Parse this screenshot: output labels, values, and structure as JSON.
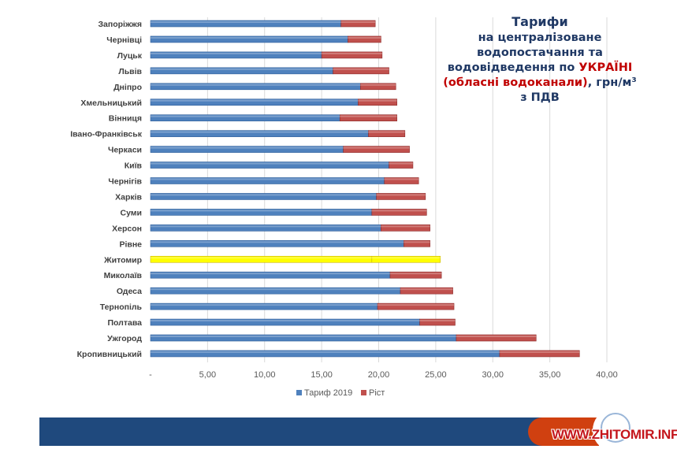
{
  "title": {
    "line1": "Тарифи",
    "line2": "на централізоване",
    "line3": "водопостачання та",
    "line4a": "водовідведення по ",
    "line4b": "УКРАЇНІ",
    "line5a": "(обласні водоканали)",
    "line5b": ", грн/м³",
    "line6": "з ПДВ"
  },
  "watermark": "WWW.ZHITOMIR.INFO",
  "colors": {
    "blue": "#4f81bd",
    "red": "#c0504d",
    "highlight": "#ffff00"
  },
  "chart_data": {
    "type": "bar",
    "orientation": "horizontal",
    "stacked": true,
    "categories": [
      "Запоріжжя",
      "Чернівці",
      "Луцьк",
      "Львів",
      "Дніпро",
      "Хмельницький",
      "Вінниця",
      "Івано-Франківськ",
      "Черкаси",
      "Київ",
      "Чернігів",
      "Харків",
      "Суми",
      "Херсон",
      "Рівне",
      "Житомир",
      "Миколаїв",
      "Одеса",
      "Тернопіль",
      "Полтава",
      "Ужгород",
      "Кропивницький"
    ],
    "series": [
      {
        "name": "Тариф 2019",
        "values": [
          16.7,
          17.3,
          15.0,
          16.0,
          18.4,
          18.2,
          16.6,
          19.1,
          16.9,
          20.9,
          20.5,
          19.8,
          19.4,
          20.2,
          22.2,
          19.4,
          21.0,
          21.9,
          19.9,
          23.6,
          26.8,
          30.6
        ]
      },
      {
        "name": "Ріст",
        "values": [
          3.0,
          2.9,
          5.3,
          4.9,
          3.1,
          3.4,
          5.0,
          3.2,
          5.8,
          2.1,
          3.0,
          4.3,
          4.8,
          4.3,
          2.3,
          6.0,
          4.5,
          4.6,
          6.7,
          3.1,
          7.0,
          7.0
        ]
      }
    ],
    "highlight": "Житомир",
    "xlim": [
      0,
      40
    ],
    "xticks": [
      "-",
      "5,00",
      "10,00",
      "15,00",
      "20,00",
      "25,00",
      "30,00",
      "35,00",
      "40,00"
    ],
    "legend_position": "bottom",
    "grid": true
  }
}
